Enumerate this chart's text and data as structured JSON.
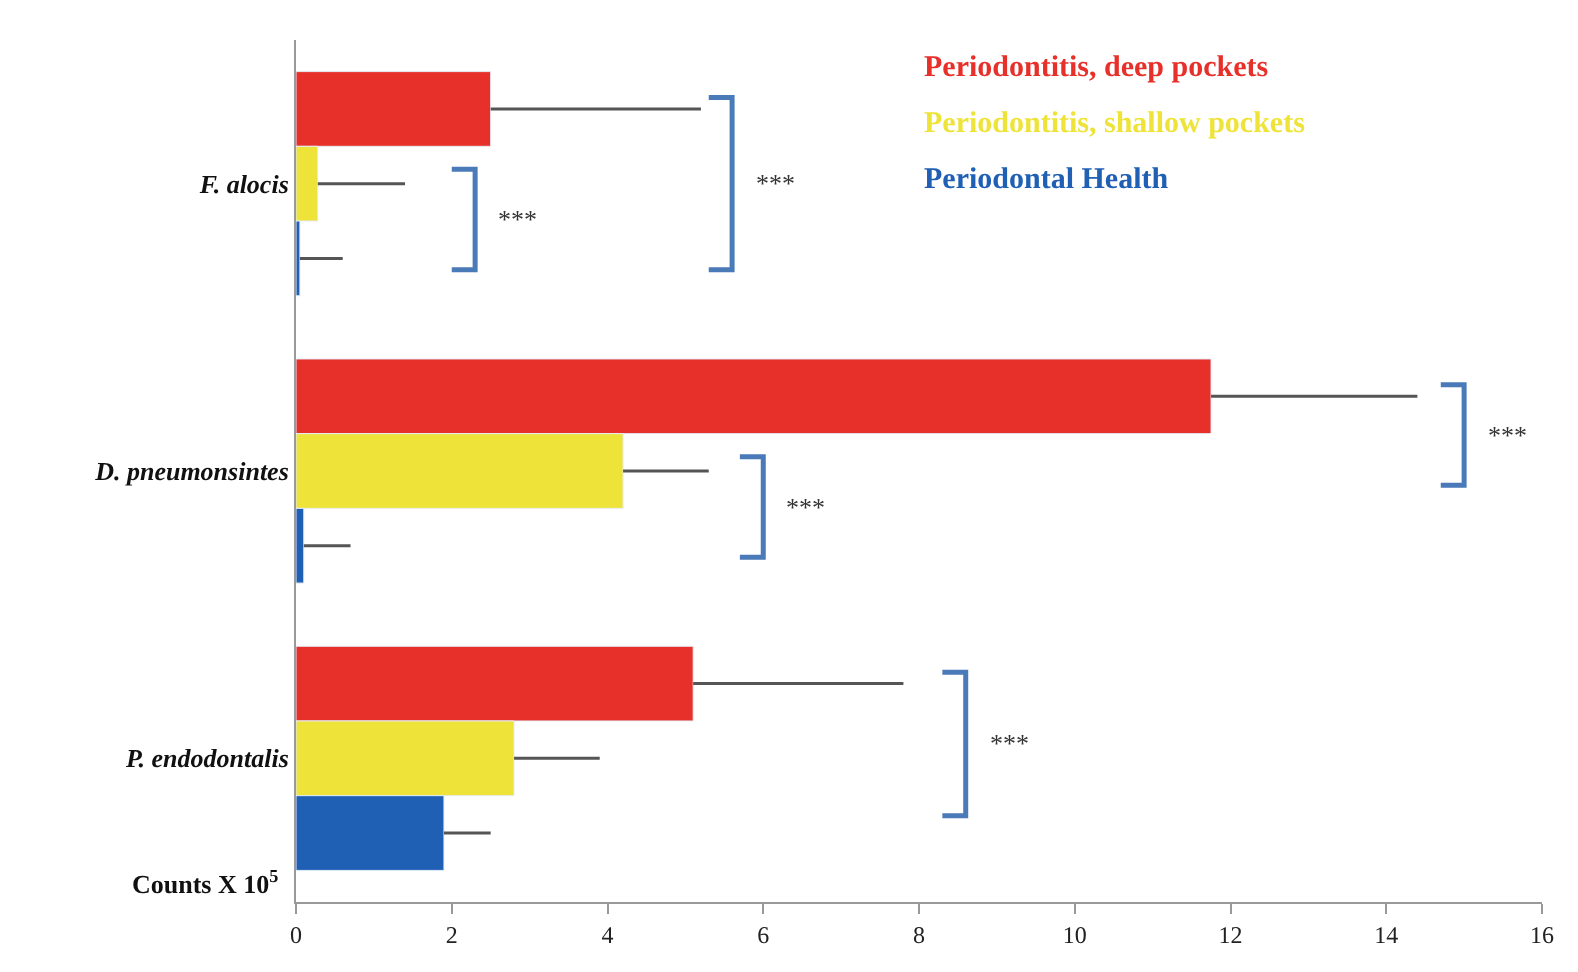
{
  "chart_data": {
    "type": "bar",
    "orientation": "horizontal",
    "categories": [
      "F. alocis",
      "D. pneumonsintes",
      "P. endodontalis"
    ],
    "xlabel": "Counts X 10$^{5}$",
    "xlim": [
      0,
      16
    ],
    "xticks": [
      0,
      2,
      4,
      6,
      8,
      10,
      12,
      14,
      16
    ],
    "legend": "top right",
    "series": [
      {
        "name": "Periodontitis, deep pockets",
        "color": "#e8302a",
        "values": [
          2.5,
          11.75,
          5.1
        ],
        "errors": [
          [
            2.5,
            5.2
          ],
          [
            11.75,
            14.4
          ],
          [
            5.1,
            7.8
          ]
        ]
      },
      {
        "name": "Periodontitis, shallow pockets",
        "color": "#eee439",
        "values": [
          0.28,
          4.2,
          2.8
        ],
        "errors": [
          [
            0.28,
            1.4
          ],
          [
            4.2,
            5.3
          ],
          [
            2.8,
            3.9
          ]
        ]
      },
      {
        "name": "Periodontal Health",
        "color": "#1f5fb4",
        "values": [
          0.05,
          0.1,
          1.9
        ],
        "errors": [
          [
            0.05,
            0.6
          ],
          [
            0.1,
            0.7
          ],
          [
            1.9,
            2.5
          ]
        ]
      }
    ],
    "annotations": [
      "***",
      "***",
      "***",
      "***",
      "***"
    ]
  }
}
